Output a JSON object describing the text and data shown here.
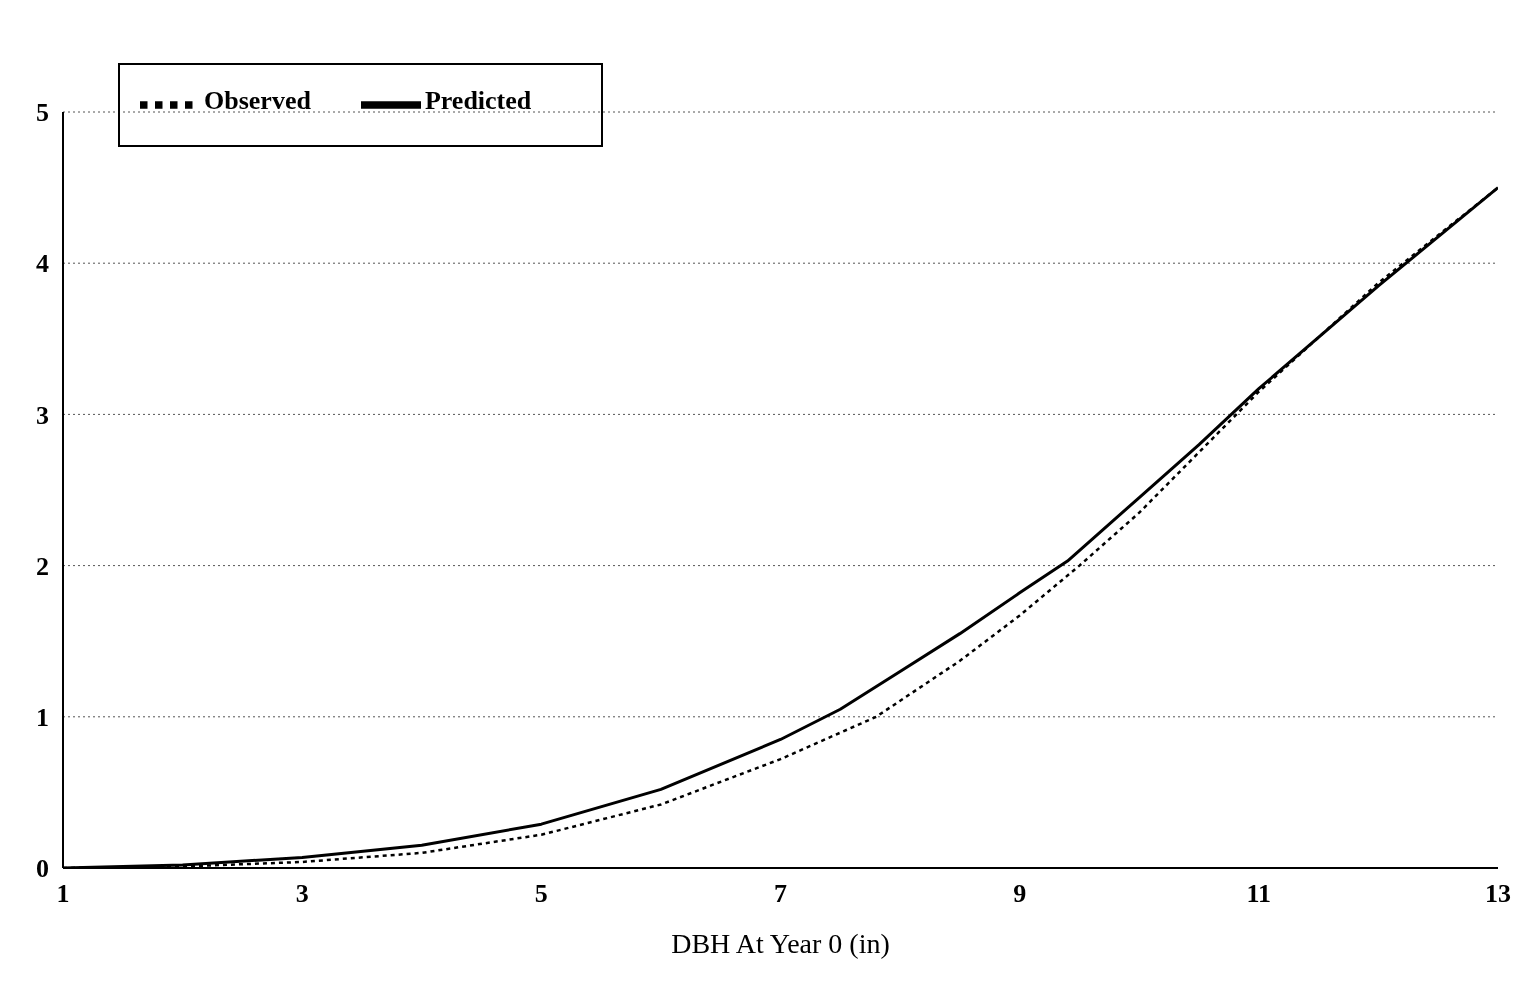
{
  "chart_data": {
    "type": "line",
    "xlabel": "DBH At Year 0 (in)",
    "xlim": [
      1,
      13
    ],
    "xticks": [
      1,
      3,
      5,
      7,
      9,
      11,
      13
    ],
    "ylim": [
      0,
      5
    ],
    "yticks": [
      0,
      1,
      2,
      3,
      4,
      5
    ],
    "grid": "y",
    "legend": "top left",
    "marker": "none",
    "series": [
      {
        "name": "Observed",
        "color": "#000000",
        "line_style": "dotted",
        "x": [
          1,
          2,
          3,
          4,
          5,
          6,
          7,
          7.8,
          8.5,
          9,
          9.5,
          10,
          10.5,
          11,
          12,
          13
        ],
        "values": [
          0,
          0.01,
          0.04,
          0.1,
          0.22,
          0.42,
          0.72,
          1.0,
          1.37,
          1.67,
          2.0,
          2.35,
          2.75,
          3.15,
          3.87,
          4.5
        ]
      },
      {
        "name": "Predicted",
        "color": "#000000",
        "line_style": "solid",
        "x": [
          1,
          2,
          3,
          4,
          5,
          6,
          7,
          7.5,
          8,
          8.5,
          9,
          9.4,
          10,
          10.5,
          11,
          12,
          13
        ],
        "values": [
          0,
          0.02,
          0.07,
          0.15,
          0.29,
          0.52,
          0.85,
          1.05,
          1.3,
          1.55,
          1.82,
          2.03,
          2.45,
          2.8,
          3.17,
          3.85,
          4.5
        ]
      }
    ]
  }
}
